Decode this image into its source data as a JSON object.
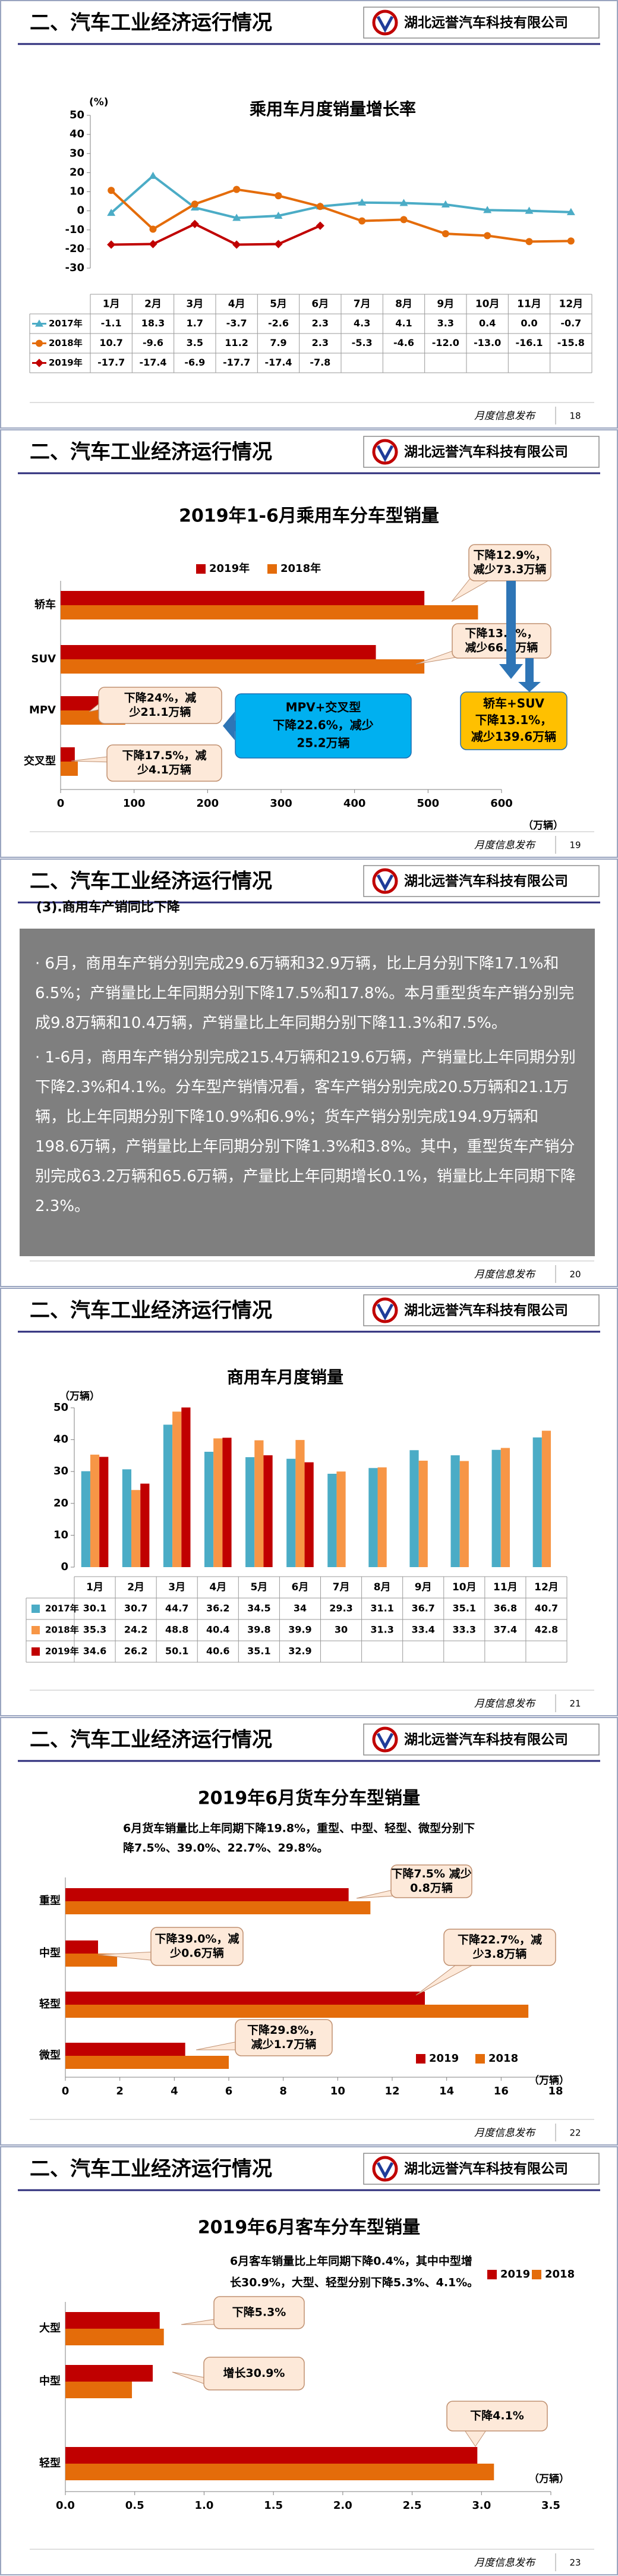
{
  "slides": [
    {
      "heading": "二、汽车工业经济运行情况",
      "company": "湖北远誉汽车科技有限公司",
      "footer": "月度信息发布",
      "page": 18
    },
    {
      "heading": "二、汽车工业经济运行情况",
      "company": "湖北远誉汽车科技有限公司",
      "footer": "月度信息发布",
      "page": 19
    },
    {
      "heading": "二、汽车工业经济运行情况",
      "company": "湖北远誉汽车科技有限公司",
      "footer": "月度信息发布",
      "page": 20
    },
    {
      "heading": "二、汽车工业经济运行情况",
      "company": "湖北远誉汽车科技有限公司",
      "footer": "月度信息发布",
      "page": 21
    },
    {
      "heading": "二、汽车工业经济运行情况",
      "company": "湖北远誉汽车科技有限公司",
      "footer": "月度信息发布",
      "page": 22
    },
    {
      "heading": "二、汽车工业经济运行情况",
      "company": "湖北远誉汽车科技有限公司",
      "footer": "月度信息发布",
      "page": 23
    }
  ],
  "text_slide": {
    "subheading": "(3).商用车产销同比下降",
    "paragraphs": [
      "6月，商用车产销分别完成29.6万辆和32.9万辆，比上月分别下降17.1%和6.5%；产销量比上年同期分别下降17.5%和17.8%。本月重型货车产销分别完成9.8万辆和10.4万辆，产销量比上年同期分别下降11.3%和7.5%。",
      "1-6月，商用车产销分别完成215.4万辆和219.6万辆，产销量比上年同期分别下降2.3%和4.1%。分车型产销情况看，客车产销分别完成20.5万辆和21.1万辆，比上年同期分别下降10.9%和6.9%；货车产销分别完成194.9万辆和198.6万辆，产销量比上年同期分别下降1.3%和3.8%。其中，重型货车产销分别完成63.2万辆和65.6万辆，产量比上年同期增长0.1%，销量比上年同期下降2.3%。"
    ]
  },
  "chart_data": [
    {
      "type": "line",
      "title": "乘用车月度销量增长率",
      "y_label": "(%)",
      "categories": [
        "1月",
        "2月",
        "3月",
        "4月",
        "5月",
        "6月",
        "7月",
        "8月",
        "9月",
        "10月",
        "11月",
        "12月"
      ],
      "series": [
        {
          "name": "2017年",
          "color": "#4bacc6",
          "values": [
            -1.1,
            18.3,
            1.7,
            -3.7,
            -2.6,
            2.3,
            4.3,
            4.1,
            3.3,
            0.4,
            0.0,
            -0.7
          ],
          "value_labels": [
            "-1.1",
            "18.3",
            "1.7",
            "-3.7",
            "-2.6",
            "2.3",
            "4.3",
            "4.1",
            "3.3",
            "0.4",
            "0.0",
            "-0.7"
          ]
        },
        {
          "name": "2018年",
          "color": "#e46c0a",
          "values": [
            10.7,
            -9.6,
            3.5,
            11.2,
            7.9,
            2.3,
            -5.3,
            -4.6,
            -12.0,
            -13.0,
            -16.1,
            -15.8
          ],
          "value_labels": [
            "10.7",
            "-9.6",
            "3.5",
            "11.2",
            "7.9",
            "2.3",
            "-5.3",
            "-4.6",
            "-12.0",
            "-13.0",
            "-16.1",
            "-15.8"
          ]
        },
        {
          "name": "2019年",
          "color": "#c00000",
          "values": [
            -17.7,
            -17.4,
            -6.9,
            -17.7,
            -17.4,
            -7.8,
            null,
            null,
            null,
            null,
            null,
            null
          ]
        }
      ],
      "ylim": [
        -30,
        50
      ],
      "yticks": [
        -30,
        -20,
        -10,
        0,
        10,
        20,
        30,
        40,
        50
      ]
    },
    {
      "type": "barh",
      "title": "2019年1-6月乘用车分车型销量",
      "x_label": "（万辆）",
      "categories": [
        "轿车",
        "SUV",
        "MPV",
        "交叉型"
      ],
      "series": [
        {
          "name": "2019年",
          "color": "#c00000",
          "values": [
            495,
            429,
            67,
            19.3
          ]
        },
        {
          "name": "2018年",
          "color": "#e46c0a",
          "values": [
            568,
            495,
            88,
            23.4
          ]
        }
      ],
      "xlim": [
        0,
        600
      ],
      "xticks": [
        0,
        100,
        200,
        300,
        400,
        500,
        600
      ],
      "annotations": [
        [
          "下降12.9%，",
          "减少73.3万辆"
        ],
        [
          "下降13.4%，",
          "减少66.4万辆"
        ],
        [
          "下降24%，减",
          "少21.1万辆"
        ],
        [
          "下降17.5%，减",
          "少4.1万辆"
        ],
        [
          "MPV+交叉型",
          "下降22.6%，减少",
          "25.2万辆"
        ],
        [
          "轿车+SUV",
          "下降13.1%，",
          "减少139.6万辆"
        ]
      ]
    },
    {
      "type": "bar",
      "title": "商用车月度销量",
      "y_label": "（万辆）",
      "categories": [
        "1月",
        "2月",
        "3月",
        "4月",
        "5月",
        "6月",
        "7月",
        "8月",
        "9月",
        "10月",
        "11月",
        "12月"
      ],
      "series": [
        {
          "name": "2017年",
          "color": "#4bacc6",
          "values": [
            30.1,
            30.7,
            44.7,
            36.2,
            34.5,
            34.0,
            29.3,
            31.1,
            36.7,
            35.1,
            36.8,
            40.7
          ]
        },
        {
          "name": "2018年",
          "color": "#f79646",
          "values": [
            35.3,
            24.2,
            48.8,
            40.4,
            39.8,
            39.9,
            30.0,
            31.3,
            33.4,
            33.3,
            37.4,
            42.8
          ]
        },
        {
          "name": "2019年",
          "color": "#c00000",
          "values": [
            34.6,
            26.2,
            50.1,
            40.6,
            35.1,
            32.9,
            null,
            null,
            null,
            null,
            null,
            null
          ]
        }
      ],
      "ylim": [
        0,
        50
      ],
      "yticks": [
        0,
        10,
        20,
        30,
        40,
        50
      ]
    },
    {
      "type": "barh",
      "title": "2019年6月货车分车型销量",
      "subtitle": [
        "6月货车销量比上年同期下降19.8%，重型、中型、轻型、微型分别下",
        "降7.5%、39.0%、22.7%、29.8%。"
      ],
      "x_label": "（万辆）",
      "categories": [
        "重型",
        "中型",
        "轻型",
        "微型"
      ],
      "series": [
        {
          "name": "2019",
          "color": "#c00000",
          "values": [
            10.4,
            1.2,
            13.2,
            4.4
          ]
        },
        {
          "name": "2018",
          "color": "#e46c0a",
          "values": [
            11.2,
            1.9,
            17.0,
            6.0
          ]
        }
      ],
      "xlim": [
        0,
        18
      ],
      "xticks": [
        0,
        2,
        4,
        6,
        8,
        10,
        12,
        14,
        16,
        18
      ],
      "annotations": [
        [
          "下降7.5% 减少",
          "0.8万辆"
        ],
        [
          "下降39.0%，减",
          "少0.6万辆"
        ],
        [
          "下降22.7%，减",
          "少3.8万辆"
        ],
        [
          "下降29.8%，",
          "减少1.7万辆"
        ]
      ]
    },
    {
      "type": "barh",
      "title": "2019年6月客车分车型销量",
      "subtitle": [
        "6月客车销量比上年同期下降0.4%，其中中型增",
        "长30.9%，大型、轻型分别下降5.3%、4.1%。"
      ],
      "x_label": "（万辆）",
      "categories": [
        "大型",
        "中型",
        "轻型"
      ],
      "series": [
        {
          "name": "2019",
          "color": "#c00000",
          "values": [
            0.68,
            0.63,
            2.97
          ]
        },
        {
          "name": "2018",
          "color": "#e46c0a",
          "values": [
            0.71,
            0.48,
            3.09
          ]
        }
      ],
      "xlim": [
        0,
        3.5
      ],
      "xticks": [
        {
          "value": 0,
          "label": "0.0"
        },
        0.5,
        {
          "value": 1,
          "label": "1.0"
        },
        1.5,
        {
          "value": 2,
          "label": "2.0"
        },
        2.5,
        {
          "value": 3,
          "label": "3.0"
        },
        3.5
      ],
      "annotations": [
        [
          "下降5.3%"
        ],
        [
          "增长30.9%"
        ],
        [
          "下降4.1%"
        ]
      ]
    }
  ]
}
